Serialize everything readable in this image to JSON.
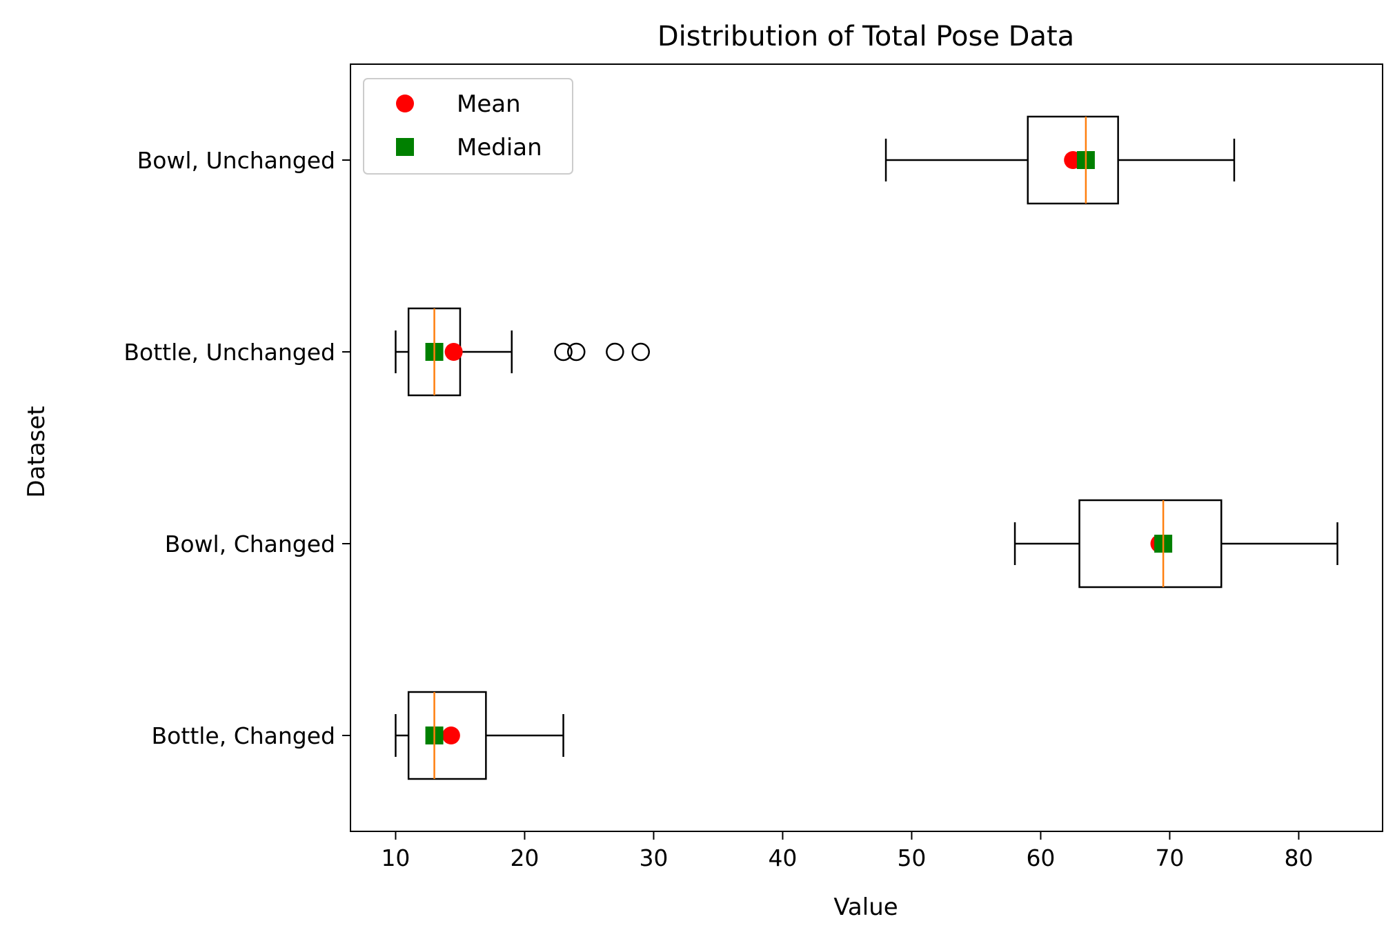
{
  "chart_data": {
    "type": "boxplot",
    "orientation": "horizontal",
    "title": "Distribution of Total Pose Data",
    "xlabel": "Value",
    "ylabel": "Dataset",
    "xlim": [
      6.5,
      86.5
    ],
    "xticks": [
      10,
      20,
      30,
      40,
      50,
      60,
      70,
      80
    ],
    "categories": [
      "Bottle, Changed",
      "Bowl, Changed",
      "Bottle, Unchanged",
      "Bowl, Unchanged"
    ],
    "grid": false,
    "legend": {
      "placement": "top-left",
      "entries": [
        {
          "label": "Mean",
          "marker": "circle",
          "color": "#ff0000"
        },
        {
          "label": "Median",
          "marker": "square",
          "color": "#008000"
        }
      ]
    },
    "colors": {
      "box": "#000000",
      "median_line": "#ff7f0e",
      "mean": "#ff0000",
      "median_marker": "#008000"
    },
    "series": [
      {
        "category": "Bottle, Changed",
        "whisker_low": 10,
        "q1": 11,
        "median": 13,
        "q3": 17,
        "whisker_high": 23,
        "mean": 14.3,
        "outliers": []
      },
      {
        "category": "Bowl, Changed",
        "whisker_low": 58,
        "q1": 63,
        "median": 69.5,
        "q3": 74,
        "whisker_high": 83,
        "mean": 69.2,
        "outliers": []
      },
      {
        "category": "Bottle, Unchanged",
        "whisker_low": 10,
        "q1": 11,
        "median": 13,
        "q3": 15,
        "whisker_high": 19,
        "mean": 14.5,
        "outliers": [
          23,
          24,
          27,
          29
        ]
      },
      {
        "category": "Bowl, Unchanged",
        "whisker_low": 48,
        "q1": 59,
        "median": 63.5,
        "q3": 66,
        "whisker_high": 75,
        "mean": 62.5,
        "outliers": []
      }
    ]
  }
}
